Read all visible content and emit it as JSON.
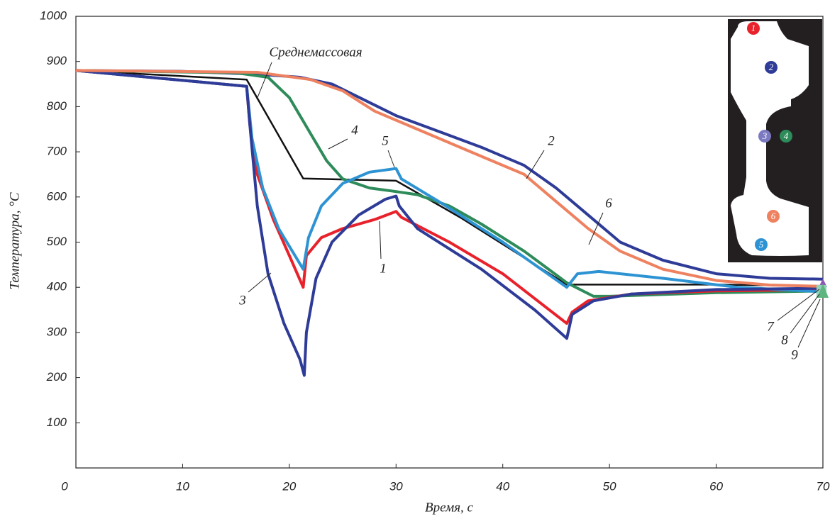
{
  "chart_data": {
    "type": "line",
    "x_label": "Время, с",
    "y_label": "Температура, °C",
    "xlim": [
      0,
      70
    ],
    "xticks": [
      0,
      10,
      20,
      30,
      40,
      50,
      60,
      70
    ],
    "ylim": [
      0,
      1000
    ],
    "yticks": [
      100,
      200,
      300,
      400,
      500,
      600,
      700,
      800,
      900,
      1000
    ],
    "grid": false,
    "series": [
      {
        "name": "1",
        "color": "#e8212b",
        "x": [
          0,
          16,
          16.3,
          17,
          18.5,
          20,
          21.3,
          21.6,
          23,
          25,
          28,
          30,
          30.5,
          35,
          40,
          46,
          46.5,
          48,
          52,
          60,
          70
        ],
        "values": [
          880,
          845,
          760,
          650,
          550,
          470,
          400,
          470,
          510,
          530,
          550,
          568,
          555,
          500,
          430,
          320,
          345,
          370,
          385,
          392,
          395
        ]
      },
      {
        "name": "2",
        "color": "#2e3b97",
        "x": [
          0,
          10,
          17,
          21,
          24,
          27,
          30,
          34,
          38,
          42,
          45,
          48,
          51,
          55,
          60,
          65,
          70
        ],
        "values": [
          880,
          878,
          872,
          865,
          850,
          815,
          780,
          745,
          710,
          670,
          620,
          560,
          500,
          460,
          430,
          420,
          418
        ]
      },
      {
        "name": "3",
        "color": "#2e3b97",
        "x": [
          0,
          16,
          16.3,
          17,
          18,
          19.5,
          21,
          21.4,
          21.6,
          22.5,
          24,
          26.5,
          29,
          30,
          30.3,
          32,
          38,
          43,
          46,
          46.5,
          48.5,
          52,
          60,
          70
        ],
        "values": [
          880,
          845,
          760,
          580,
          430,
          320,
          240,
          205,
          300,
          420,
          500,
          560,
          595,
          602,
          580,
          530,
          440,
          350,
          287,
          340,
          370,
          385,
          395,
          398
        ]
      },
      {
        "name": "4",
        "color": "#2e8b5a",
        "x": [
          0,
          15,
          18,
          20,
          22,
          23.5,
          25,
          27.5,
          30,
          32,
          35,
          38,
          42,
          46,
          48.5,
          50,
          60,
          70
        ],
        "values": [
          880,
          875,
          865,
          820,
          740,
          680,
          640,
          620,
          612,
          605,
          580,
          540,
          480,
          410,
          380,
          380,
          388,
          392
        ]
      },
      {
        "name": "5",
        "color": "#2e93d3",
        "x": [
          0,
          16,
          16.5,
          17.5,
          19,
          21.3,
          21.8,
          23,
          25,
          27.5,
          30,
          30.5,
          34,
          40,
          46,
          47,
          49,
          55,
          62,
          70
        ],
        "values": [
          880,
          845,
          730,
          620,
          530,
          440,
          510,
          580,
          630,
          655,
          663,
          640,
          590,
          500,
          400,
          430,
          435,
          420,
          400,
          390
        ]
      },
      {
        "name": "6",
        "color": "#ee8160",
        "x": [
          0,
          17,
          22,
          25,
          28,
          31,
          35,
          38,
          42,
          45,
          48,
          51,
          55,
          60,
          65,
          70
        ],
        "values": [
          880,
          876,
          860,
          835,
          790,
          760,
          720,
          690,
          650,
          590,
          530,
          480,
          440,
          415,
          405,
          402
        ]
      },
      {
        "name": "Среднемассовая",
        "color": "#111111",
        "x": [
          0,
          16,
          21.3,
          30,
          36,
          46,
          60,
          70
        ],
        "values": [
          880,
          860,
          641,
          636,
          555,
          406,
          406,
          403
        ]
      }
    ],
    "annotations": [
      "7",
      "8",
      "9"
    ]
  }
}
